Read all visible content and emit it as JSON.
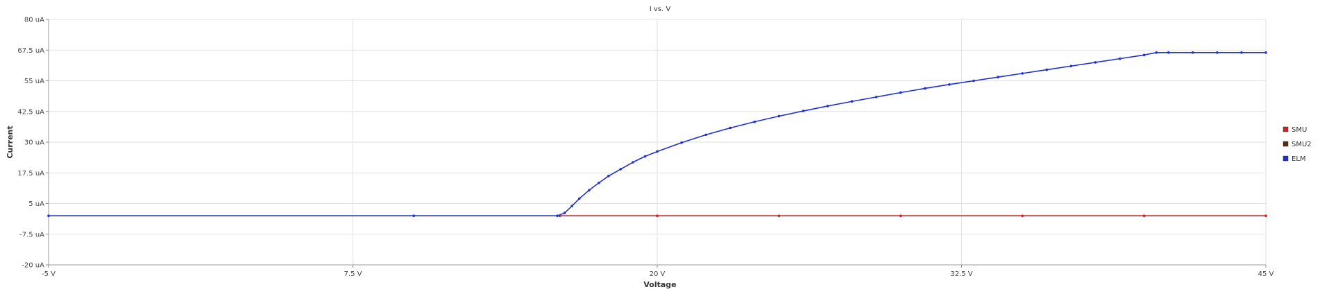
{
  "chart_data": {
    "type": "line",
    "title": "I vs. V",
    "xlabel": "Voltage",
    "ylabel": "Current",
    "xlim": [
      -5,
      45
    ],
    "ylim": [
      -20,
      80
    ],
    "x_ticks": [
      "-5 V",
      "7.5 V",
      "20 V",
      "32.5 V",
      "45 V"
    ],
    "y_ticks": [
      "-20 uA",
      "-7.5 uA",
      "5 uA",
      "17.5 uA",
      "30 uA",
      "42.5 uA",
      "55 uA",
      "67.5 uA",
      "80 uA"
    ],
    "x_tick_values": [
      -5,
      7.5,
      20,
      32.5,
      45
    ],
    "y_tick_values": [
      -20,
      -7.5,
      5,
      17.5,
      30,
      42.5,
      55,
      67.5,
      80
    ],
    "grid": true,
    "legend_position": "right",
    "series": [
      {
        "name": "SMU",
        "color": "#d42020",
        "x": [
          16,
          20,
          25,
          30,
          35,
          40,
          45
        ],
        "y": [
          0,
          0,
          0,
          0,
          0,
          0,
          0
        ]
      },
      {
        "name": "SMU2",
        "color": "#5a2a10",
        "x": [],
        "y": []
      },
      {
        "name": "ELM",
        "color": "#1f2fd6",
        "x": [
          -5,
          10,
          15.9,
          16.2,
          16.5,
          16.8,
          17.2,
          17.6,
          18,
          18.5,
          19,
          19.5,
          20,
          21,
          22,
          23,
          24,
          25,
          26,
          27,
          28,
          29,
          30,
          31,
          32,
          33,
          34,
          35,
          36,
          37,
          38,
          39,
          40,
          40.5,
          41,
          42,
          43,
          44,
          45
        ],
        "y": [
          0,
          0,
          0,
          1.2,
          4,
          7,
          10.4,
          13.4,
          16.2,
          19,
          21.8,
          24.2,
          26.2,
          29.8,
          33,
          35.8,
          38.3,
          40.6,
          42.7,
          44.7,
          46.6,
          48.4,
          50.2,
          51.9,
          53.5,
          55,
          56.5,
          58,
          59.5,
          61,
          62.5,
          64,
          65.5,
          66.5,
          66.5,
          66.5,
          66.5,
          66.5,
          66.5
        ]
      }
    ]
  }
}
